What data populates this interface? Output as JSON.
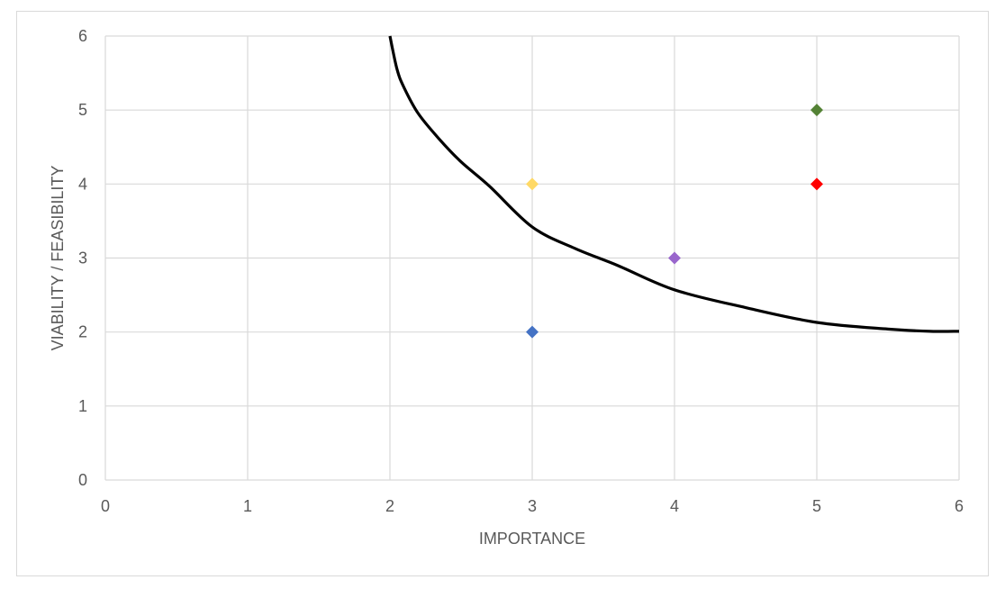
{
  "chart_data": {
    "type": "scatter",
    "title": "",
    "xlabel": "IMPORTANCE",
    "ylabel": "VIABILITY / FEASIBILITY",
    "xlim": [
      0,
      6
    ],
    "ylim": [
      0,
      6
    ],
    "x_ticks": [
      0,
      1,
      2,
      3,
      4,
      5,
      6
    ],
    "y_ticks": [
      0,
      1,
      2,
      3,
      4,
      5,
      6
    ],
    "grid": true,
    "legend": "none",
    "points": [
      {
        "x": 3,
        "y": 2,
        "color": "#4472c4"
      },
      {
        "x": 3,
        "y": 4,
        "color": "#ffd966"
      },
      {
        "x": 4,
        "y": 3,
        "color": "#9966cc"
      },
      {
        "x": 5,
        "y": 4,
        "color": "#ff0000"
      },
      {
        "x": 5,
        "y": 5,
        "color": "#548235"
      }
    ],
    "curve": {
      "color": "#000000",
      "points": [
        {
          "x": 2.0,
          "y": 6.0
        },
        {
          "x": 2.05,
          "y": 5.55
        },
        {
          "x": 2.1,
          "y": 5.3
        },
        {
          "x": 2.2,
          "y": 4.95
        },
        {
          "x": 2.35,
          "y": 4.6
        },
        {
          "x": 2.5,
          "y": 4.3
        },
        {
          "x": 2.7,
          "y": 3.97
        },
        {
          "x": 3.0,
          "y": 3.42
        },
        {
          "x": 3.3,
          "y": 3.13
        },
        {
          "x": 3.6,
          "y": 2.9
        },
        {
          "x": 4.0,
          "y": 2.57
        },
        {
          "x": 4.5,
          "y": 2.33
        },
        {
          "x": 5.0,
          "y": 2.13
        },
        {
          "x": 5.5,
          "y": 2.04
        },
        {
          "x": 5.8,
          "y": 2.01
        },
        {
          "x": 6.0,
          "y": 2.01
        }
      ]
    }
  }
}
